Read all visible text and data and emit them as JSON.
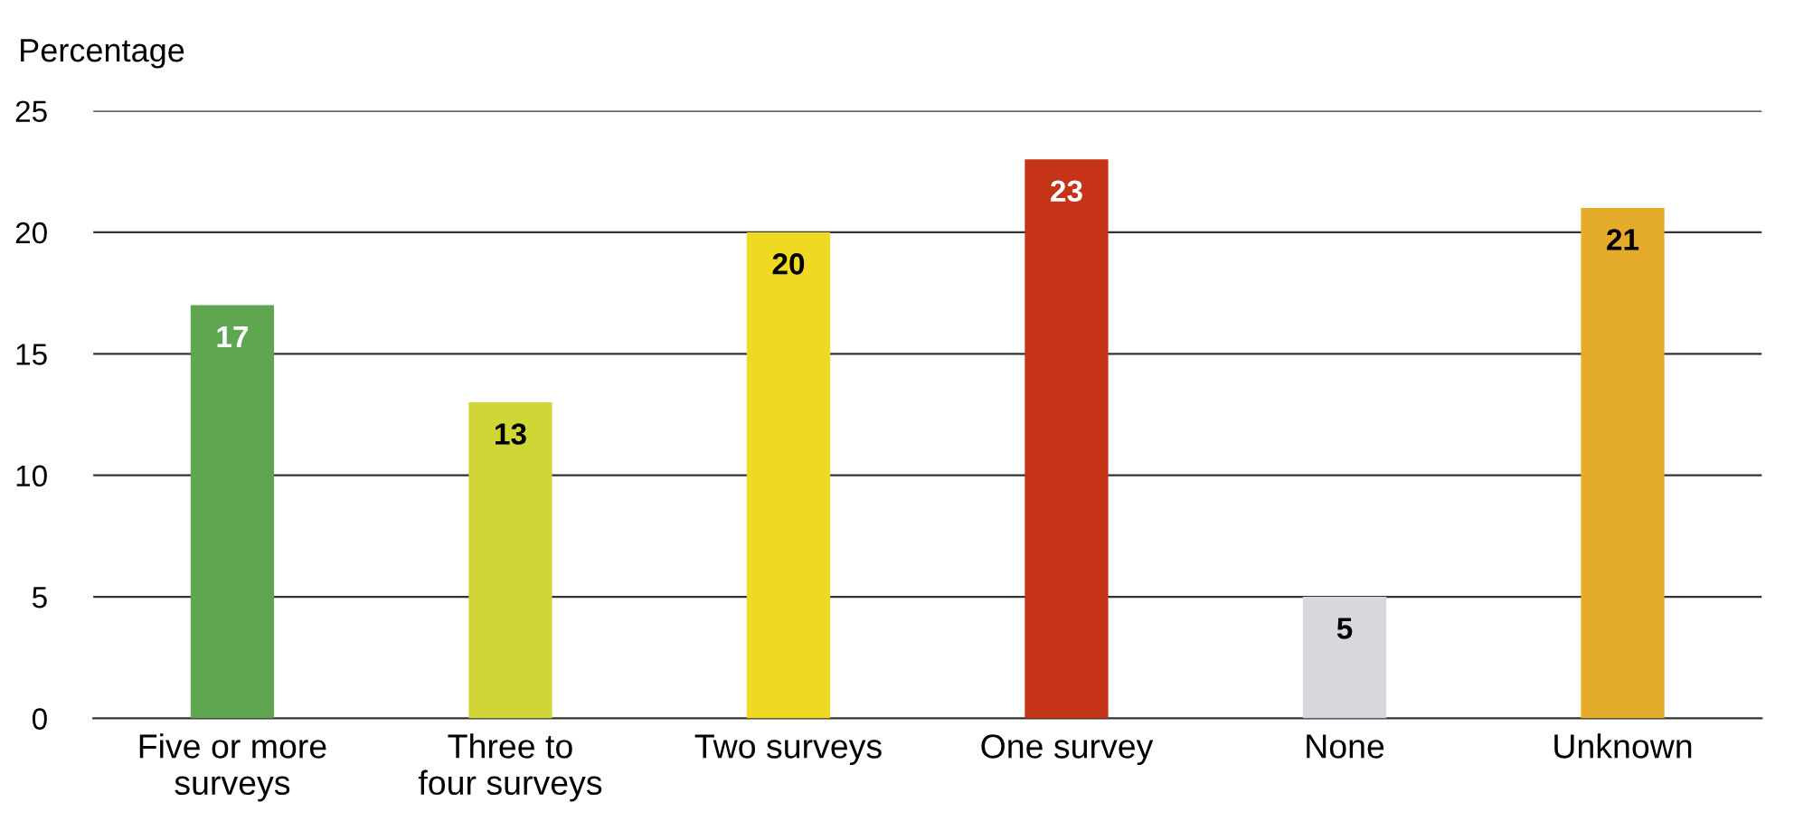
{
  "chart_data": {
    "type": "bar",
    "ylabel": "Percentage",
    "categories": [
      "Five or more\nsurveys",
      "Three to\nfour surveys",
      "Two surveys",
      "One survey",
      "None",
      "Unknown"
    ],
    "values": [
      17,
      13,
      20,
      23,
      5,
      21
    ],
    "colors": [
      "#5ea64f",
      "#cfd636",
      "#f0d923",
      "#c63418",
      "#d8d7de",
      "#e5ab2a"
    ],
    "ylim": [
      0,
      25
    ],
    "yticks": [
      0,
      5,
      10,
      15,
      20,
      25
    ],
    "grid": "y",
    "data_labels": true
  }
}
